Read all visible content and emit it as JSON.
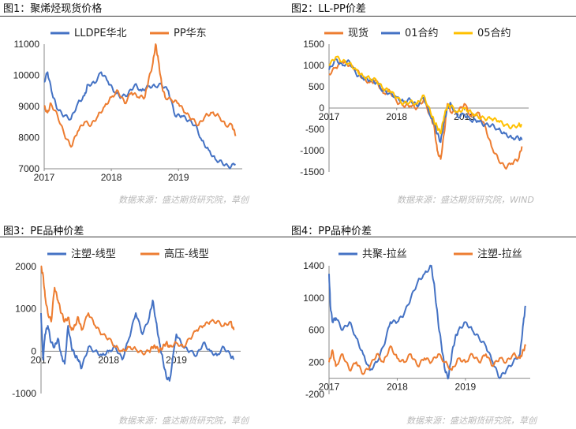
{
  "sources": [
    "数据来源：盛达期货研究院，草创",
    "数据来源：盛达期货研究院，WIND",
    "数据来源：盛达期货研究院，草创",
    "数据来源：盛达期货研究院，草创"
  ],
  "colors": {
    "blue": "#4472C4",
    "orange": "#ED7D31",
    "yellow": "#FFC000"
  },
  "chart_data": [
    {
      "title": "图1：聚烯烃现货价格",
      "type": "line",
      "xlabel": "",
      "ylabel": "",
      "ylim": [
        7000,
        11000
      ],
      "yticks": [
        7000,
        8000,
        9000,
        10000,
        11000
      ],
      "xticks": [
        "2017",
        "2018",
        "2019"
      ],
      "legend": "top",
      "series": [
        {
          "name": "LLDPE华北",
          "color": "#4472C4",
          "x": [
            2017.0,
            2017.05,
            2017.12,
            2017.2,
            2017.3,
            2017.4,
            2017.5,
            2017.6,
            2017.65,
            2017.75,
            2017.85,
            2017.95,
            2018.05,
            2018.15,
            2018.25,
            2018.35,
            2018.45,
            2018.55,
            2018.65,
            2018.75,
            2018.85,
            2018.95,
            2019.05,
            2019.15,
            2019.25,
            2019.35,
            2019.45,
            2019.55,
            2019.65,
            2019.75,
            2019.85
          ],
          "y": [
            9800,
            10100,
            9400,
            8900,
            8700,
            8600,
            9100,
            9350,
            9700,
            9750,
            10100,
            9800,
            9450,
            9300,
            9400,
            9700,
            9500,
            9650,
            9650,
            9700,
            9500,
            8700,
            8700,
            8550,
            8400,
            7900,
            7600,
            7300,
            7200,
            7050,
            7150
          ]
        },
        {
          "name": "PP华东",
          "color": "#ED7D31",
          "x": [
            2017.0,
            2017.05,
            2017.1,
            2017.2,
            2017.3,
            2017.4,
            2017.5,
            2017.6,
            2017.7,
            2017.8,
            2017.9,
            2018.0,
            2018.1,
            2018.2,
            2018.3,
            2018.4,
            2018.5,
            2018.55,
            2018.62,
            2018.66,
            2018.7,
            2018.75,
            2018.8,
            2018.9,
            2019.0,
            2019.1,
            2019.2,
            2019.3,
            2019.4,
            2019.5,
            2019.6,
            2019.7,
            2019.8,
            2019.85
          ],
          "y": [
            9000,
            8800,
            9100,
            8700,
            8100,
            7700,
            8200,
            8500,
            8400,
            8700,
            9000,
            9300,
            9500,
            9100,
            9450,
            9300,
            9300,
            9800,
            10400,
            11000,
            10500,
            9700,
            9300,
            9200,
            9100,
            8800,
            8600,
            8400,
            8700,
            8800,
            8700,
            8400,
            8400,
            8050
          ]
        }
      ]
    },
    {
      "title": "图2：LL-PP价差",
      "type": "line",
      "xlabel": "",
      "ylabel": "",
      "ylim": [
        -1500,
        1500
      ],
      "yticks": [
        -1500,
        -1000,
        -500,
        0,
        500,
        1000,
        1500
      ],
      "xticks": [
        "2017",
        "2018",
        "2019"
      ],
      "legend": "top",
      "series": [
        {
          "name": "现货",
          "color": "#ED7D31",
          "x": [
            2017.0,
            2017.1,
            2017.2,
            2017.3,
            2017.4,
            2017.5,
            2017.6,
            2017.7,
            2017.8,
            2017.9,
            2018.0,
            2018.1,
            2018.2,
            2018.3,
            2018.4,
            2018.5,
            2018.55,
            2018.6,
            2018.65,
            2018.7,
            2018.75,
            2018.8,
            2018.9,
            2019.0,
            2019.1,
            2019.2,
            2019.3,
            2019.4,
            2019.5,
            2019.6,
            2019.7,
            2019.8,
            2019.85
          ],
          "y": [
            800,
            950,
            1100,
            1000,
            900,
            700,
            600,
            650,
            350,
            400,
            150,
            50,
            50,
            0,
            200,
            -200,
            -400,
            -1000,
            -1200,
            -600,
            100,
            -100,
            -100,
            100,
            -200,
            -100,
            -400,
            -900,
            -1200,
            -1400,
            -1300,
            -1200,
            -900
          ]
        },
        {
          "name": "01合约",
          "color": "#4472C4",
          "x": [
            2017.0,
            2017.1,
            2017.2,
            2017.3,
            2017.4,
            2017.5,
            2017.6,
            2017.7,
            2017.8,
            2017.9,
            2018.0,
            2018.1,
            2018.2,
            2018.3,
            2018.4,
            2018.5,
            2018.55,
            2018.6,
            2018.65,
            2018.7,
            2018.75,
            2018.8,
            2018.9,
            2019.0,
            2019.1,
            2019.2,
            2019.3,
            2019.4,
            2019.5,
            2019.6,
            2019.7,
            2019.8,
            2019.85
          ],
          "y": [
            900,
            1150,
            1000,
            1100,
            800,
            700,
            650,
            600,
            400,
            350,
            250,
            150,
            200,
            50,
            250,
            -200,
            -350,
            -600,
            -800,
            -300,
            0,
            100,
            -200,
            -150,
            -300,
            -300,
            -400,
            -400,
            -500,
            -600,
            -700,
            -700,
            -750
          ]
        },
        {
          "name": "05合约",
          "color": "#FFC000",
          "x": [
            2017.0,
            2017.1,
            2017.2,
            2017.3,
            2017.4,
            2017.5,
            2017.6,
            2017.7,
            2017.8,
            2017.9,
            2018.0,
            2018.1,
            2018.2,
            2018.3,
            2018.4,
            2018.5,
            2018.55,
            2018.6,
            2018.65,
            2018.7,
            2018.75,
            2018.8,
            2018.9,
            2019.0,
            2019.1,
            2019.2,
            2019.3,
            2019.4,
            2019.5,
            2019.6,
            2019.7,
            2019.8,
            2019.85
          ],
          "y": [
            1000,
            1200,
            1100,
            1050,
            900,
            750,
            700,
            650,
            450,
            400,
            250,
            100,
            150,
            100,
            300,
            -100,
            -300,
            -450,
            -600,
            -200,
            50,
            50,
            -100,
            0,
            -100,
            -200,
            -250,
            -250,
            -300,
            -400,
            -450,
            -400,
            -400
          ]
        }
      ]
    },
    {
      "title": "图3：PE品种价差",
      "type": "line",
      "xlabel": "",
      "ylabel": "",
      "ylim": [
        -1000,
        2000
      ],
      "yticks": [
        -1000,
        0,
        1000,
        2000
      ],
      "xticks": [
        "2017",
        "2018",
        "2019"
      ],
      "legend": "top",
      "series": [
        {
          "name": "注塑-线型",
          "color": "#4472C4",
          "x": [
            2017.0,
            2017.03,
            2017.06,
            2017.1,
            2017.15,
            2017.2,
            2017.25,
            2017.3,
            2017.35,
            2017.4,
            2017.45,
            2017.5,
            2017.55,
            2017.6,
            2017.7,
            2017.8,
            2017.9,
            2018.0,
            2018.1,
            2018.2,
            2018.3,
            2018.4,
            2018.5,
            2018.6,
            2018.65,
            2018.7,
            2018.75,
            2018.8,
            2018.85,
            2018.9,
            2019.0,
            2019.1,
            2019.2,
            2019.3,
            2019.4,
            2019.5,
            2019.6,
            2019.7,
            2019.8,
            2019.85
          ],
          "y": [
            900,
            -200,
            400,
            600,
            200,
            100,
            300,
            -100,
            -300,
            600,
            100,
            -100,
            -200,
            -400,
            100,
            0,
            -100,
            0,
            100,
            -200,
            300,
            900,
            400,
            800,
            1200,
            700,
            200,
            -200,
            -600,
            -700,
            400,
            100,
            0,
            -100,
            200,
            0,
            -100,
            100,
            -100,
            -200
          ]
        },
        {
          "name": "高压-线型",
          "color": "#ED7D31",
          "x": [
            2017.0,
            2017.03,
            2017.06,
            2017.1,
            2017.15,
            2017.2,
            2017.25,
            2017.3,
            2017.35,
            2017.4,
            2017.45,
            2017.5,
            2017.55,
            2017.6,
            2017.7,
            2017.8,
            2017.9,
            2018.0,
            2018.1,
            2018.2,
            2018.3,
            2018.4,
            2018.5,
            2018.6,
            2018.65,
            2018.7,
            2018.75,
            2018.8,
            2018.85,
            2018.9,
            2019.0,
            2019.1,
            2019.2,
            2019.3,
            2019.4,
            2019.5,
            2019.6,
            2019.7,
            2019.8,
            2019.85
          ],
          "y": [
            2000,
            1800,
            1300,
            900,
            700,
            1500,
            1200,
            900,
            700,
            800,
            500,
            600,
            800,
            500,
            900,
            600,
            400,
            300,
            100,
            0,
            100,
            50,
            -50,
            0,
            100,
            100,
            0,
            100,
            200,
            100,
            200,
            100,
            300,
            500,
            600,
            700,
            700,
            600,
            700,
            500
          ]
        }
      ]
    },
    {
      "title": "图4：PP品种价差",
      "type": "line",
      "xlabel": "",
      "ylabel": "",
      "ylim": [
        -200,
        1400
      ],
      "yticks": [
        -200,
        200,
        600,
        1000,
        1400
      ],
      "xticks": [
        "2017",
        "2018",
        "2019"
      ],
      "legend": "top",
      "series": [
        {
          "name": "共聚-拉丝",
          "color": "#4472C4",
          "x": [
            2017.0,
            2017.02,
            2017.05,
            2017.1,
            2017.2,
            2017.3,
            2017.4,
            2017.5,
            2017.6,
            2017.7,
            2017.8,
            2017.9,
            2018.0,
            2018.1,
            2018.2,
            2018.3,
            2018.4,
            2018.5,
            2018.55,
            2018.6,
            2018.65,
            2018.7,
            2018.75,
            2018.8,
            2018.85,
            2018.9,
            2019.0,
            2019.1,
            2019.2,
            2019.3,
            2019.4,
            2019.5,
            2019.6,
            2019.7,
            2019.8,
            2019.85,
            2019.88
          ],
          "y": [
            1300,
            900,
            700,
            750,
            600,
            700,
            500,
            300,
            100,
            200,
            400,
            700,
            700,
            800,
            1000,
            1200,
            1300,
            1400,
            1100,
            700,
            400,
            100,
            0,
            300,
            500,
            600,
            700,
            600,
            500,
            400,
            200,
            0,
            100,
            200,
            300,
            700,
            900
          ]
        },
        {
          "name": "注塑-拉丝",
          "color": "#ED7D31",
          "x": [
            2017.0,
            2017.05,
            2017.1,
            2017.2,
            2017.3,
            2017.4,
            2017.5,
            2017.6,
            2017.7,
            2017.8,
            2017.9,
            2018.0,
            2018.1,
            2018.2,
            2018.3,
            2018.4,
            2018.5,
            2018.6,
            2018.7,
            2018.8,
            2018.9,
            2019.0,
            2019.1,
            2019.2,
            2019.3,
            2019.4,
            2019.5,
            2019.6,
            2019.7,
            2019.8,
            2019.85,
            2019.88
          ],
          "y": [
            200,
            350,
            150,
            300,
            100,
            200,
            50,
            150,
            300,
            200,
            400,
            250,
            200,
            300,
            150,
            250,
            200,
            300,
            200,
            100,
            250,
            200,
            300,
            200,
            300,
            150,
            250,
            200,
            300,
            250,
            350,
            400
          ]
        }
      ]
    }
  ]
}
